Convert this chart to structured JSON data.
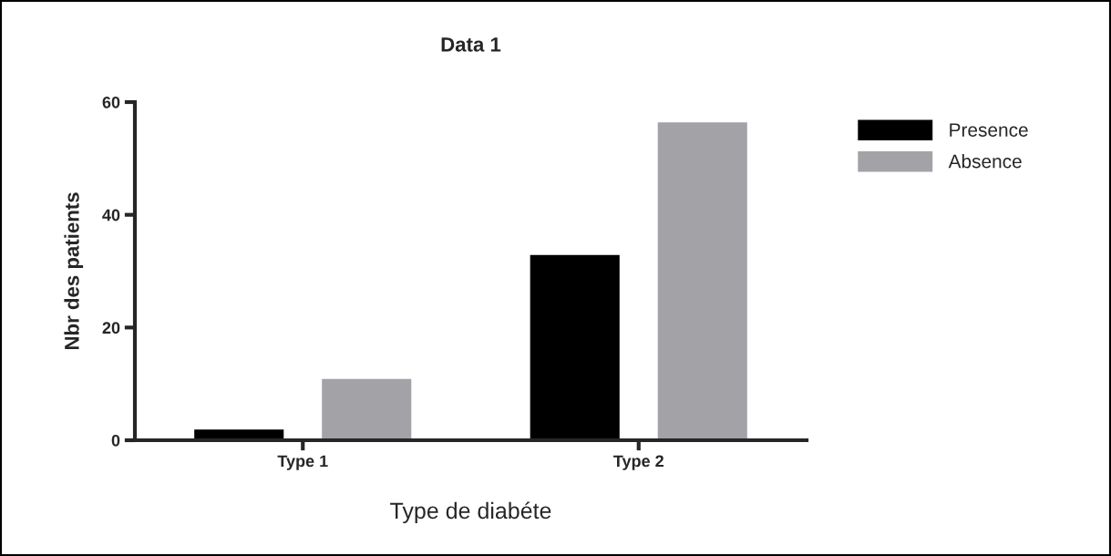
{
  "chart_data": {
    "type": "bar",
    "title": "Data 1",
    "xlabel": "Type de diabéte",
    "ylabel": "Nbr des patients",
    "categories": [
      "Type 1",
      "Type 2"
    ],
    "series": [
      {
        "name": "Presence",
        "color": "#000000",
        "values": [
          2,
          33
        ]
      },
      {
        "name": "Absence",
        "color": "#a3a2a7",
        "values": [
          11,
          56.5
        ]
      }
    ],
    "ylim": [
      0,
      60
    ],
    "yticks": [
      0,
      20,
      40,
      60
    ],
    "grid": false,
    "legend": "right"
  }
}
